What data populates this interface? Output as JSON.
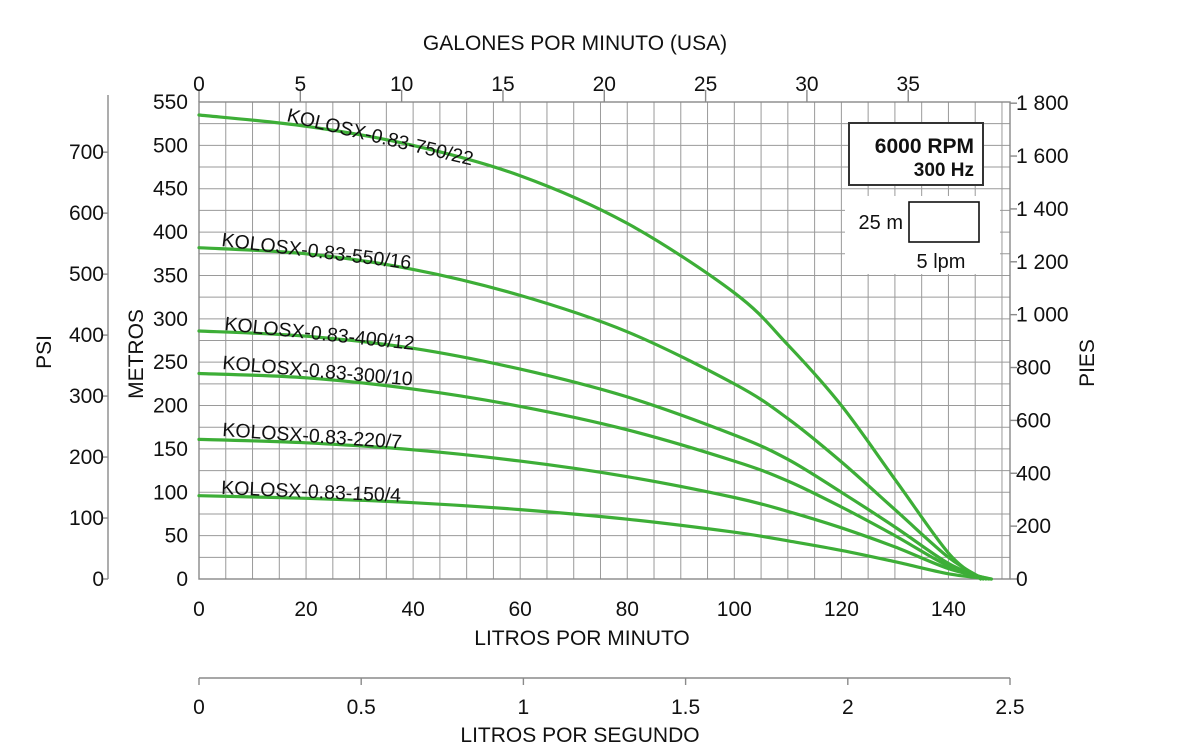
{
  "chart_data": {
    "type": "line",
    "x_axis": {
      "label": "LITROS POR MINUTO",
      "range": [
        0,
        150
      ],
      "ticks": [
        0,
        20,
        40,
        60,
        80,
        100,
        120,
        140
      ]
    },
    "x_top_axis": {
      "label": "GALONES POR MINUTO (USA)",
      "ticks": [
        0,
        5,
        10,
        15,
        20,
        25,
        30,
        35
      ]
    },
    "x_bottom_axis_2": {
      "label": "LITROS POR SEGUNDO",
      "ticks": [
        "0",
        "0.5",
        "1",
        "1.5",
        "2",
        "2.5"
      ]
    },
    "y_axis": {
      "label": "METROS",
      "range": [
        0,
        550
      ],
      "ticks": [
        0,
        50,
        100,
        150,
        200,
        250,
        300,
        350,
        400,
        450,
        500,
        550
      ]
    },
    "y_axis_psi": {
      "label": "PSI",
      "ticks": [
        0,
        100,
        200,
        300,
        400,
        500,
        600,
        700
      ]
    },
    "y_axis_right": {
      "label": "PIES",
      "ticks": [
        "0",
        "200",
        "400",
        "600",
        "800",
        "1 000",
        "1 200",
        "1 400",
        "1 600",
        "1 800"
      ]
    },
    "grid": true,
    "legend": {
      "speed": "6000 RPM",
      "frequency": "300 Hz",
      "scale_y": "25 m",
      "scale_x": "5 lpm"
    },
    "series": [
      {
        "name": "KOLOSX-0.83-750/22",
        "color": "#3dae37",
        "x": [
          0,
          20,
          40,
          60,
          80,
          100,
          110,
          120,
          130,
          140,
          146
        ],
        "y": [
          535,
          522,
          500,
          465,
          410,
          330,
          270,
          200,
          115,
          30,
          0
        ]
      },
      {
        "name": "KOLOSX-0.83-550/16",
        "color": "#3dae37",
        "x": [
          0,
          20,
          40,
          60,
          80,
          100,
          110,
          120,
          130,
          140,
          146.5
        ],
        "y": [
          382,
          375,
          357,
          327,
          285,
          225,
          185,
          135,
          80,
          25,
          0
        ]
      },
      {
        "name": "KOLOSX-0.83-400/12",
        "color": "#3dae37",
        "x": [
          0,
          20,
          40,
          60,
          80,
          100,
          110,
          120,
          130,
          140,
          147
        ],
        "y": [
          286,
          280,
          266,
          242,
          210,
          166,
          138,
          100,
          60,
          18,
          0
        ]
      },
      {
        "name": "KOLOSX-0.83-300/10",
        "color": "#3dae37",
        "x": [
          0,
          20,
          40,
          60,
          80,
          100,
          110,
          120,
          130,
          140,
          147.5
        ],
        "y": [
          237,
          232,
          219,
          199,
          172,
          136,
          113,
          83,
          50,
          15,
          0
        ]
      },
      {
        "name": "KOLOSX-0.83-220/7",
        "color": "#3dae37",
        "x": [
          0,
          20,
          40,
          60,
          80,
          100,
          110,
          120,
          130,
          140,
          148
        ],
        "y": [
          161,
          157,
          149,
          136,
          118,
          94,
          78,
          59,
          37,
          12,
          0
        ]
      },
      {
        "name": "KOLOSX-0.83-150/4",
        "color": "#3dae37",
        "x": [
          0,
          20,
          40,
          60,
          80,
          100,
          110,
          120,
          130,
          140,
          148
        ],
        "y": [
          96,
          93,
          88,
          80,
          69,
          54,
          44,
          33,
          20,
          6,
          0
        ]
      }
    ]
  }
}
